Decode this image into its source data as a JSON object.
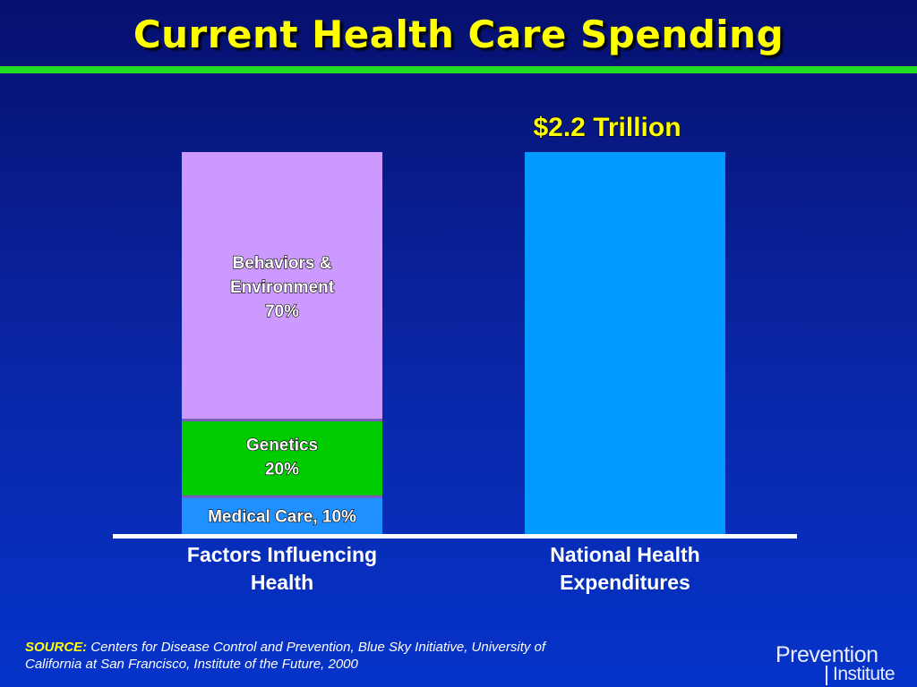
{
  "title": "Current Health Care Spending",
  "chart_data": {
    "type": "bar",
    "categories": [
      "Factors Influencing Health",
      "National Health Expenditures"
    ],
    "category_label_lines": [
      [
        "Factors Influencing",
        "Health"
      ],
      [
        "National Health",
        "Expenditures"
      ]
    ],
    "stacked_segments": [
      {
        "label_lines": [
          "Medical Care, 10%"
        ],
        "value": 10,
        "color": "#1e90ff"
      },
      {
        "label_lines": [
          "Genetics",
          "20%"
        ],
        "value": 20,
        "color": "#00cc00"
      },
      {
        "label_lines": [
          "Behaviors &",
          "Environment",
          "70%"
        ],
        "value": 70,
        "color": "#cc99ff"
      }
    ],
    "total_bar": {
      "value": 100,
      "label": "$2.2 Trillion",
      "color": "#0099ff"
    },
    "ylim": [
      0,
      100
    ],
    "xlabel": "",
    "ylabel": "",
    "grid": false,
    "colors": {
      "axis": "#ffffff",
      "title": "#ffff00",
      "green_rule": "#22dd22",
      "background": "#0a27a8"
    }
  },
  "source": {
    "key": "SOURCE:",
    "text": " Centers for Disease Control and Prevention, Blue Sky Initiative, University of California at San Francisco, Institute of the Future, 2000"
  },
  "logo": {
    "line1": "Prevention",
    "line2": "Institute"
  }
}
